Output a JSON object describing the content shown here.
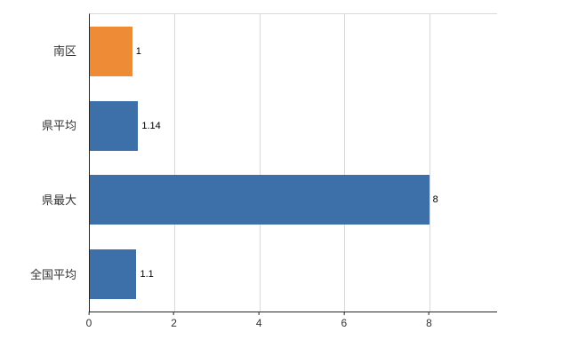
{
  "chart_data": {
    "type": "bar",
    "orientation": "horizontal",
    "title": "",
    "xlabel": "",
    "ylabel": "",
    "categories": [
      "南区",
      "県平均",
      "県最大",
      "全国平均"
    ],
    "values": [
      1,
      1.14,
      8,
      1.1
    ],
    "value_labels": [
      "1",
      "1.14",
      "8",
      "1.1"
    ],
    "bar_colors": [
      "#ed8b37",
      "#3d6fa8",
      "#3d6fa8",
      "#3d6fa8"
    ],
    "xlim": [
      0,
      9.6
    ],
    "xticks": [
      0,
      2,
      4,
      6,
      8
    ],
    "xtick_labels": [
      "0",
      "2",
      "4",
      "6",
      "8"
    ],
    "grid": "vertical",
    "legend": "none",
    "colors": {
      "bar_blue": "#3d6fa8",
      "bar_orange": "#ed8b37",
      "gridline": "#d9d9d9",
      "axis": "#262626"
    }
  }
}
